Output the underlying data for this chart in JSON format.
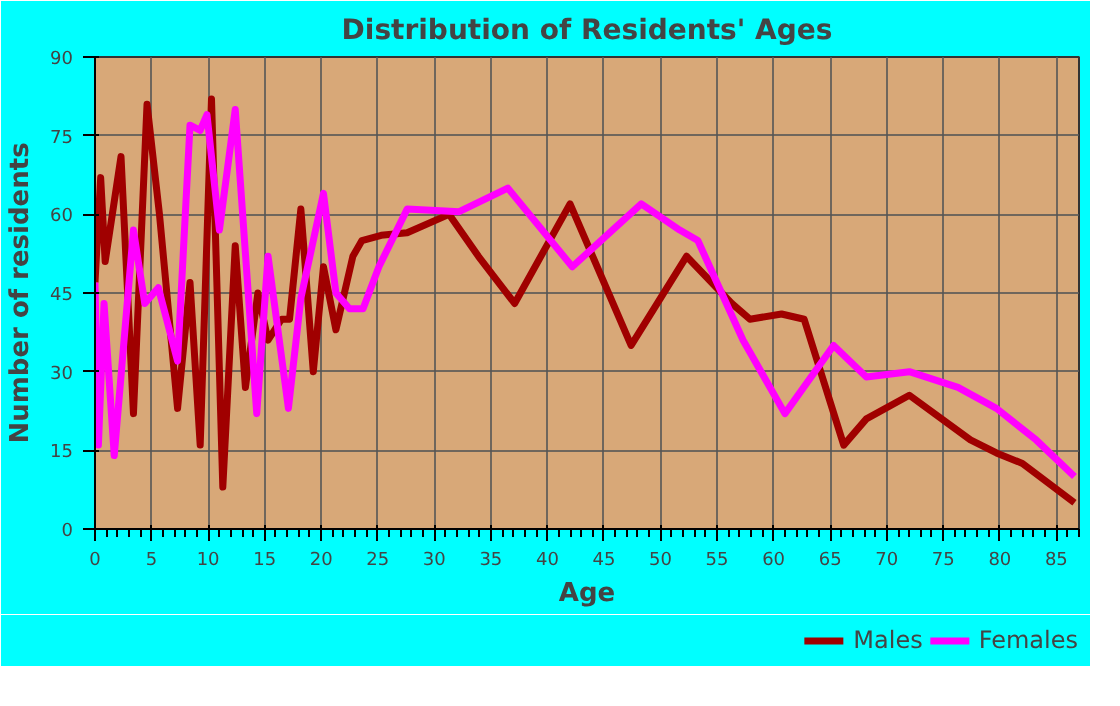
{
  "chart_data": {
    "type": "line",
    "title": "Distribution of Residents' Ages",
    "xlabel": "Age",
    "ylabel": "Number of residents",
    "xlim": [
      0,
      87
    ],
    "xticks": [
      0,
      5,
      10,
      15,
      20,
      25,
      30,
      35,
      40,
      45,
      50,
      55,
      60,
      65,
      70,
      75,
      80,
      85
    ],
    "ylim": [
      0,
      90
    ],
    "yticks": [
      0,
      15,
      30,
      45,
      60,
      75,
      90
    ],
    "grid": true,
    "legend": "bottom",
    "marker": "none",
    "line_style": "solid",
    "series": [
      {
        "name": "Males",
        "color": "#a00000",
        "x": [
          0,
          0.5,
          0.9,
          2.3,
          3.4,
          4.6,
          5.7,
          7.3,
          8.4,
          9.3,
          10.3,
          11.3,
          12.4,
          13.3,
          14.4,
          15.3,
          16.5,
          17.2,
          18.2,
          19.3,
          20.2,
          21.3,
          22.8,
          23.6,
          25.3,
          27.6,
          31.3,
          33.9,
          37.1,
          42,
          47.4,
          52.3,
          56.3,
          57.9,
          60.7,
          62.7,
          66.2,
          68.2,
          72,
          77.4,
          79.7,
          82,
          86.6
        ],
        "values": [
          47,
          67,
          51,
          71,
          22,
          81,
          60,
          23,
          47,
          16,
          82,
          8,
          54,
          27,
          45,
          36,
          40,
          40,
          61,
          30,
          50,
          38,
          52,
          55,
          56,
          56.5,
          60,
          52,
          43,
          62,
          35,
          52,
          43,
          40,
          41,
          40,
          16,
          21,
          25.5,
          17,
          14.5,
          12.5,
          5
        ]
      },
      {
        "name": "Females",
        "color": "#ff00ff",
        "x": [
          0,
          0.3,
          0.8,
          1.7,
          3.4,
          4.4,
          5.6,
          7.3,
          8.4,
          9.3,
          9.9,
          11.0,
          12.4,
          14.3,
          15.3,
          17.1,
          18.2,
          20.2,
          21.3,
          22.5,
          23.7,
          25.1,
          27.6,
          32.2,
          36.5,
          42.2,
          48.3,
          51.7,
          53.3,
          57.3,
          61,
          65.3,
          68.2,
          72,
          76.3,
          79.7,
          83.2,
          86.6
        ],
        "values": [
          47,
          16,
          43,
          14,
          57,
          43,
          46,
          32,
          77,
          76,
          79,
          57,
          80,
          22,
          52,
          23,
          44,
          64,
          45,
          42,
          42,
          50,
          61,
          60.5,
          65,
          50,
          62,
          57,
          55,
          36,
          22,
          35,
          29,
          30,
          27,
          23,
          17,
          10
        ]
      }
    ]
  }
}
